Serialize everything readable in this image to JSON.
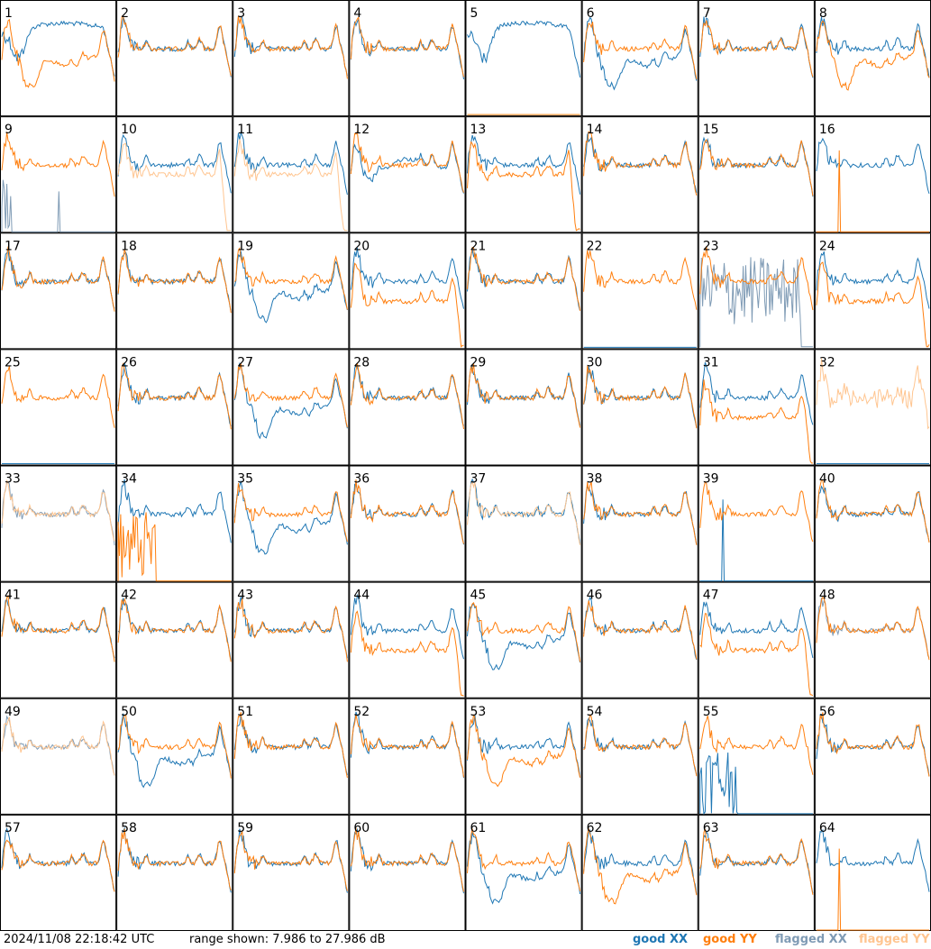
{
  "footer": {
    "timestamp": "2024/11/08 22:18:42 UTC",
    "range_text": "range shown: 7.986 to 27.986 dB",
    "legend": {
      "good_xx": "good XX",
      "good_yy": "good YY",
      "flagged_xx": "flagged XX",
      "flagged_yy": "flagged YY"
    }
  },
  "colors": {
    "good_xx": "#1f77b4",
    "good_yy": "#ff7f0e",
    "flagged_xx": "#7f9bb5",
    "flagged_yy": "#ffc590",
    "border": "#000000"
  },
  "chart_data": {
    "type": "line",
    "layout": "8x8 small multiples",
    "range_db": [
      7.986,
      27.986
    ],
    "panels": [
      {
        "id": "1",
        "xx": "hump",
        "yy": "dip"
      },
      {
        "id": "2",
        "xx": "normal",
        "yy": "normal"
      },
      {
        "id": "3",
        "xx": "normal",
        "yy": "normal"
      },
      {
        "id": "4",
        "xx": "normal",
        "yy": "normal"
      },
      {
        "id": "5",
        "xx": "hump",
        "yy": "floor"
      },
      {
        "id": "6",
        "xx": "dip",
        "yy": "high"
      },
      {
        "id": "7",
        "xx": "normal",
        "yy": "normal"
      },
      {
        "id": "8",
        "xx": "normal",
        "yy": "dip"
      },
      {
        "id": "9",
        "xx": "flag-spikes",
        "yy": "normal"
      },
      {
        "id": "10",
        "xx": "normal",
        "yy": "flag-wide"
      },
      {
        "id": "11",
        "xx": "normal",
        "yy": "flag-wide"
      },
      {
        "id": "12",
        "xx": "wavy",
        "yy": "normal"
      },
      {
        "id": "13",
        "xx": "normal",
        "yy": "wide"
      },
      {
        "id": "14",
        "xx": "normal",
        "yy": "normal"
      },
      {
        "id": "15",
        "xx": "normal",
        "yy": "normal"
      },
      {
        "id": "16",
        "xx": "normal",
        "yy": "spike"
      },
      {
        "id": "17",
        "xx": "normal",
        "yy": "normal"
      },
      {
        "id": "18",
        "xx": "normal",
        "yy": "normal"
      },
      {
        "id": "19",
        "xx": "dip",
        "yy": "normal"
      },
      {
        "id": "20",
        "xx": "normal",
        "yy": "low"
      },
      {
        "id": "21",
        "xx": "normal",
        "yy": "normal"
      },
      {
        "id": "22",
        "xx": "floor",
        "yy": "normal"
      },
      {
        "id": "23",
        "xx": "flag-noise",
        "yy": "normal"
      },
      {
        "id": "24",
        "xx": "normal",
        "yy": "low"
      },
      {
        "id": "25",
        "xx": "floor",
        "yy": "normal"
      },
      {
        "id": "26",
        "xx": "normal",
        "yy": "normal"
      },
      {
        "id": "27",
        "xx": "dip",
        "yy": "normal"
      },
      {
        "id": "28",
        "xx": "normal",
        "yy": "normal"
      },
      {
        "id": "29",
        "xx": "normal",
        "yy": "normal"
      },
      {
        "id": "30",
        "xx": "normal",
        "yy": "normal"
      },
      {
        "id": "31",
        "xx": "normal",
        "yy": "low"
      },
      {
        "id": "32",
        "xx": "floor",
        "yy": "flag-noisy"
      },
      {
        "id": "33",
        "xx": "flag-normal",
        "yy": "flag-normal"
      },
      {
        "id": "34",
        "xx": "normal",
        "yy": "spikes"
      },
      {
        "id": "35",
        "xx": "dip",
        "yy": "normal"
      },
      {
        "id": "36",
        "xx": "normal",
        "yy": "normal"
      },
      {
        "id": "37",
        "xx": "normal",
        "yy": "flag-normal"
      },
      {
        "id": "38",
        "xx": "normal",
        "yy": "normal"
      },
      {
        "id": "39",
        "xx": "spike",
        "yy": "normal"
      },
      {
        "id": "40",
        "xx": "normal",
        "yy": "normal"
      },
      {
        "id": "41",
        "xx": "normal",
        "yy": "normal"
      },
      {
        "id": "42",
        "xx": "normal",
        "yy": "normal"
      },
      {
        "id": "43",
        "xx": "normal",
        "yy": "normal"
      },
      {
        "id": "44",
        "xx": "normal",
        "yy": "low"
      },
      {
        "id": "45",
        "xx": "dip",
        "yy": "normal"
      },
      {
        "id": "46",
        "xx": "normal",
        "yy": "normal"
      },
      {
        "id": "47",
        "xx": "normal",
        "yy": "low"
      },
      {
        "id": "48",
        "xx": "flag-normal",
        "yy": "normal"
      },
      {
        "id": "49",
        "xx": "flag-normal",
        "yy": "flag-normal"
      },
      {
        "id": "50",
        "xx": "dip",
        "yy": "normal"
      },
      {
        "id": "51",
        "xx": "normal",
        "yy": "normal"
      },
      {
        "id": "52",
        "xx": "normal",
        "yy": "normal"
      },
      {
        "id": "53",
        "xx": "normal",
        "yy": "dip"
      },
      {
        "id": "54",
        "xx": "normal",
        "yy": "normal"
      },
      {
        "id": "55",
        "xx": "spikes",
        "yy": "normal"
      },
      {
        "id": "56",
        "xx": "normal",
        "yy": "normal"
      },
      {
        "id": "57",
        "xx": "normal",
        "yy": "normal"
      },
      {
        "id": "58",
        "xx": "normal",
        "yy": "normal"
      },
      {
        "id": "59",
        "xx": "normal",
        "yy": "normal"
      },
      {
        "id": "60",
        "xx": "normal",
        "yy": "normal"
      },
      {
        "id": "61",
        "xx": "dip",
        "yy": "normal"
      },
      {
        "id": "62",
        "xx": "normal",
        "yy": "dip"
      },
      {
        "id": "63",
        "xx": "normal",
        "yy": "normal"
      },
      {
        "id": "64",
        "xx": "normal",
        "yy": "spike"
      }
    ]
  }
}
